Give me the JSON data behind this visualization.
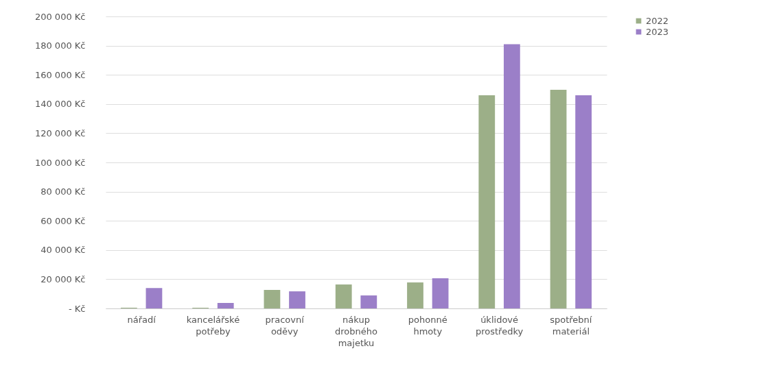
{
  "chart_data": {
    "type": "bar",
    "categories": [
      "nářadí",
      "kancelářské potřeby",
      "pracovní oděvy",
      "nákup drobného majetku",
      "pohonné hmoty",
      "úklidové prostředky",
      "spotřební materiál"
    ],
    "series": [
      {
        "name": "2022",
        "color": "#9caf88",
        "values": [
          500,
          500,
          12700,
          16400,
          17800,
          146000,
          149800
        ]
      },
      {
        "name": "2023",
        "color": "#9b7fc8",
        "values": [
          14000,
          3800,
          11700,
          8900,
          20700,
          181000,
          146000
        ]
      }
    ],
    "ylim": [
      0,
      200000
    ],
    "yticks": [
      {
        "value": 0,
        "label": "- Kč"
      },
      {
        "value": 20000,
        "label": "20 000 Kč"
      },
      {
        "value": 40000,
        "label": "40 000 Kč"
      },
      {
        "value": 60000,
        "label": "60 000 Kč"
      },
      {
        "value": 80000,
        "label": "80 000 Kč"
      },
      {
        "value": 100000,
        "label": "100 000 Kč"
      },
      {
        "value": 120000,
        "label": "120 000 Kč"
      },
      {
        "value": 140000,
        "label": "140 000 Kč"
      },
      {
        "value": 160000,
        "label": "160 000 Kč"
      },
      {
        "value": 180000,
        "label": "180 000 Kč"
      },
      {
        "value": 200000,
        "label": "200 000 Kč"
      }
    ],
    "grid": "y",
    "legend": "right"
  }
}
